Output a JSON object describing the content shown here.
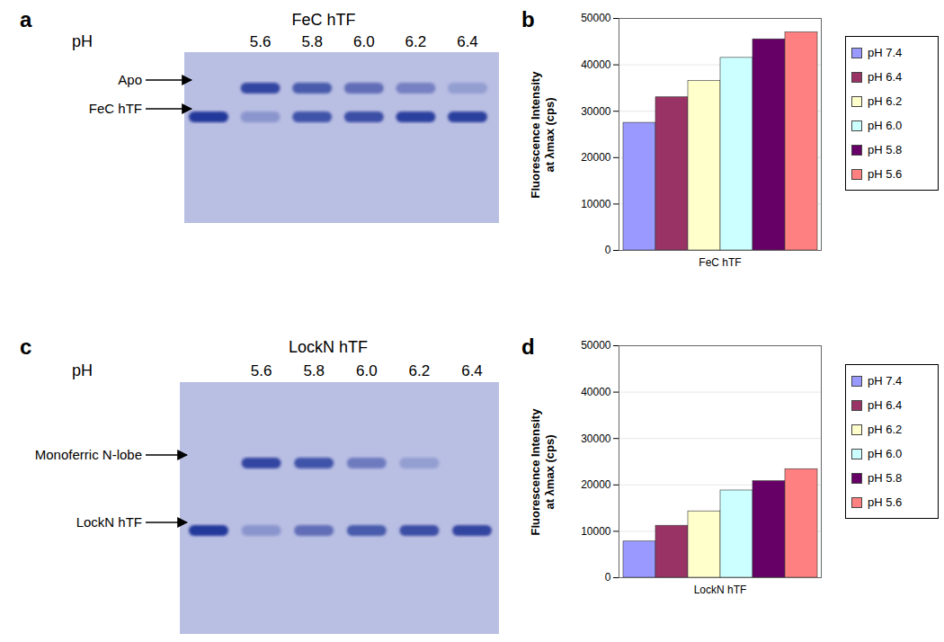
{
  "gels": [
    {
      "panel": "a",
      "title": "FeC hTF",
      "row_label": "pH",
      "bands": [
        "Apo",
        "FeC hTF"
      ],
      "lanes": [
        {
          "label": null,
          "intensity": [
            0,
            1
          ]
        },
        {
          "label": "5.6",
          "intensity": [
            0.9,
            0.3
          ]
        },
        {
          "label": "5.8",
          "intensity": [
            0.75,
            0.8
          ]
        },
        {
          "label": "6.0",
          "intensity": [
            0.6,
            0.85
          ]
        },
        {
          "label": "6.2",
          "intensity": [
            0.45,
            0.95
          ]
        },
        {
          "label": "6.4",
          "intensity": [
            0.25,
            0.95
          ]
        }
      ]
    },
    {
      "panel": "c",
      "title": "LockN hTF",
      "row_label": "pH",
      "bands": [
        "Monoferric N-lobe",
        "LockN hTF"
      ],
      "lanes": [
        {
          "label": null,
          "intensity": [
            0,
            1
          ]
        },
        {
          "label": "5.6",
          "intensity": [
            0.9,
            0.3
          ]
        },
        {
          "label": "5.8",
          "intensity": [
            0.8,
            0.6
          ]
        },
        {
          "label": "6.0",
          "intensity": [
            0.5,
            0.75
          ]
        },
        {
          "label": "6.2",
          "intensity": [
            0.25,
            0.85
          ]
        },
        {
          "label": "6.4",
          "intensity": [
            0,
            0.9
          ]
        }
      ]
    }
  ],
  "chart_data": [
    {
      "panel": "b",
      "type": "bar",
      "categories": [
        "FeC hTF"
      ],
      "ylabel": [
        "Fluorescence Intensity",
        "at λmax (cps)"
      ],
      "series": [
        {
          "name": "pH 7.4",
          "color": "#9999ff",
          "values": [
            27500
          ]
        },
        {
          "name": "pH 6.4",
          "color": "#993366",
          "values": [
            33000
          ]
        },
        {
          "name": "pH 6.2",
          "color": "#ffffcc",
          "values": [
            36500
          ]
        },
        {
          "name": "pH 6.0",
          "color": "#ccffff",
          "values": [
            41500
          ]
        },
        {
          "name": "pH 5.8",
          "color": "#660066",
          "values": [
            45500
          ]
        },
        {
          "name": "pH 5.6",
          "color": "#ff8080",
          "values": [
            47000
          ]
        }
      ],
      "ylim": [
        0,
        50000
      ],
      "yticks": [
        0,
        10000,
        20000,
        30000,
        40000,
        50000
      ],
      "grid": true,
      "legend": "right"
    },
    {
      "panel": "d",
      "type": "bar",
      "categories": [
        "LockN hTF"
      ],
      "ylabel": [
        "Fluorescence Intensity",
        "at λmax (cps)"
      ],
      "series": [
        {
          "name": "pH 7.4",
          "color": "#9999ff",
          "values": [
            7800
          ]
        },
        {
          "name": "pH 6.4",
          "color": "#993366",
          "values": [
            11200
          ]
        },
        {
          "name": "pH 6.2",
          "color": "#ffffcc",
          "values": [
            14300
          ]
        },
        {
          "name": "pH 6.0",
          "color": "#ccffff",
          "values": [
            18800
          ]
        },
        {
          "name": "pH 5.8",
          "color": "#660066",
          "values": [
            20800
          ]
        },
        {
          "name": "pH 5.6",
          "color": "#ff8080",
          "values": [
            23400
          ]
        }
      ],
      "ylim": [
        0,
        50000
      ],
      "yticks": [
        0,
        10000,
        20000,
        30000,
        40000,
        50000
      ],
      "grid": true,
      "legend": "right"
    }
  ]
}
